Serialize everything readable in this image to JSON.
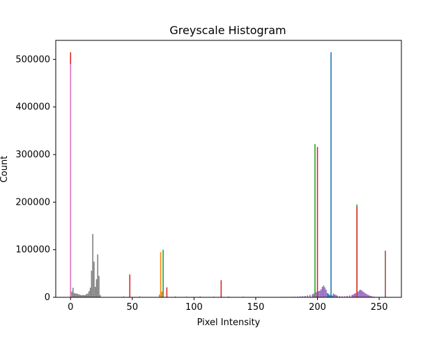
{
  "chart_data": {
    "type": "bar",
    "title": "Greyscale Histogram",
    "xlabel": "Pixel Intensity",
    "ylabel": "Count",
    "xlim": [
      -12,
      268
    ],
    "ylim": [
      0,
      540000
    ],
    "x_ticks": [
      0,
      50,
      100,
      150,
      200,
      250
    ],
    "y_ticks": [
      0,
      100000,
      200000,
      300000,
      400000,
      500000
    ],
    "series": [
      {
        "color": "#1f77b4",
        "points": [
          [
            211,
            515000
          ],
          [
            208,
            9000
          ],
          [
            209,
            7000
          ],
          [
            210,
            5000
          ],
          [
            212,
            4000
          ]
        ]
      },
      {
        "color": "#ff7f0e",
        "points": [
          [
            73,
            95000
          ],
          [
            74,
            12000
          ],
          [
            72,
            6000
          ]
        ]
      },
      {
        "color": "#2ca02c",
        "points": [
          [
            198,
            322000
          ],
          [
            75,
            100000
          ],
          [
            232,
            195000
          ]
        ]
      },
      {
        "color": "#d62728",
        "points": [
          [
            0,
            515000
          ],
          [
            48,
            48000
          ],
          [
            78,
            21000
          ],
          [
            122,
            36000
          ],
          [
            200,
            316000
          ],
          [
            232,
            190000
          ],
          [
            43,
            1500
          ],
          [
            56,
            1500
          ],
          [
            85,
            1500
          ],
          [
            94,
            1200
          ],
          [
            105,
            1500
          ],
          [
            116,
            1200
          ],
          [
            128,
            1500
          ],
          [
            140,
            1200
          ],
          [
            152,
            1000
          ]
        ]
      },
      {
        "color": "#9467bd",
        "points": [
          [
            170,
            1000
          ],
          [
            172,
            1000
          ],
          [
            174,
            1000
          ],
          [
            176,
            1000
          ],
          [
            178,
            1000
          ],
          [
            180,
            1200
          ],
          [
            182,
            1300
          ],
          [
            184,
            1500
          ],
          [
            186,
            2000
          ],
          [
            188,
            2500
          ],
          [
            190,
            3000
          ],
          [
            192,
            4000
          ],
          [
            194,
            5000
          ],
          [
            196,
            6500
          ],
          [
            197,
            8000
          ],
          [
            199,
            11000
          ],
          [
            201,
            13000
          ],
          [
            202,
            14000
          ],
          [
            203,
            17000
          ],
          [
            204,
            22000
          ],
          [
            205,
            25000
          ],
          [
            206,
            21000
          ],
          [
            207,
            16000
          ],
          [
            213,
            8000
          ],
          [
            214,
            6000
          ],
          [
            215,
            5000
          ],
          [
            216,
            3500
          ],
          [
            218,
            2500
          ],
          [
            220,
            2000
          ],
          [
            222,
            2200
          ],
          [
            224,
            3000
          ],
          [
            226,
            4000
          ],
          [
            228,
            5000
          ],
          [
            229,
            6000
          ],
          [
            230,
            7500
          ],
          [
            231,
            9000
          ],
          [
            233,
            12000
          ],
          [
            234,
            15000
          ],
          [
            235,
            16000
          ],
          [
            236,
            14000
          ],
          [
            237,
            12000
          ],
          [
            238,
            10000
          ],
          [
            239,
            8000
          ],
          [
            240,
            6500
          ],
          [
            241,
            5000
          ],
          [
            242,
            4000
          ],
          [
            243,
            3000
          ],
          [
            244,
            2000
          ],
          [
            245,
            1500
          ],
          [
            246,
            1200
          ],
          [
            248,
            900
          ]
        ]
      },
      {
        "color": "#8c564b",
        "points": [
          [
            255,
            98000
          ]
        ]
      },
      {
        "color": "#e377c2",
        "points": [
          [
            0,
            490000
          ]
        ]
      },
      {
        "color": "#7f7f7f",
        "points": [
          [
            1,
            12000
          ],
          [
            2,
            20000
          ],
          [
            3,
            9000
          ],
          [
            4,
            8000
          ],
          [
            5,
            8000
          ],
          [
            6,
            7000
          ],
          [
            7,
            6000
          ],
          [
            8,
            5000
          ],
          [
            9,
            4500
          ],
          [
            10,
            5000
          ],
          [
            11,
            4500
          ],
          [
            12,
            5000
          ],
          [
            13,
            7000
          ],
          [
            14,
            8000
          ],
          [
            15,
            13000
          ],
          [
            16,
            20000
          ],
          [
            17,
            56000
          ],
          [
            18,
            133000
          ],
          [
            19,
            75000
          ],
          [
            20,
            22000
          ],
          [
            21,
            38000
          ],
          [
            22,
            90000
          ],
          [
            23,
            45000
          ],
          [
            24,
            5000
          ]
        ]
      }
    ]
  }
}
